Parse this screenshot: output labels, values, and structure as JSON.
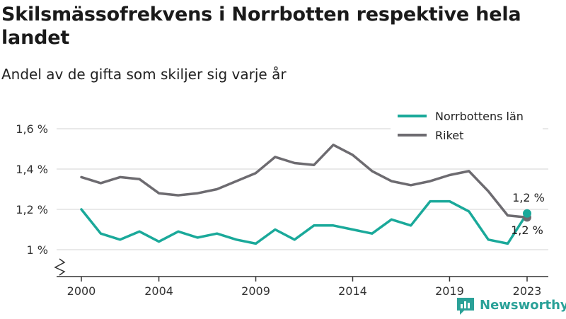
{
  "header": {
    "title": "Skilsmässofrekvens i Norrbotten respektive hela landet",
    "subtitle": "Andel av de gifta som skiljer sig varje år"
  },
  "brand": {
    "name": "Newsworthy",
    "color": "#2aa198"
  },
  "chart_data": {
    "type": "line",
    "title": "Skilsmässofrekvens i Norrbotten respektive hela landet",
    "subtitle": "Andel av de gifta som skiljer sig varje år",
    "xlabel": "",
    "ylabel": "",
    "x": [
      2000,
      2001,
      2002,
      2003,
      2004,
      2005,
      2006,
      2007,
      2008,
      2009,
      2010,
      2011,
      2012,
      2013,
      2014,
      2015,
      2016,
      2017,
      2018,
      2019,
      2020,
      2021,
      2022,
      2023
    ],
    "xticks": [
      2000,
      2004,
      2009,
      2014,
      2019,
      2023
    ],
    "xlim": [
      2000,
      2023
    ],
    "yticks": [
      1.0,
      1.2,
      1.4,
      1.6
    ],
    "ytick_labels": [
      "1 %",
      "1,2 %",
      "1,4 %",
      "1,6 %"
    ],
    "ylim": [
      1.0,
      1.6
    ],
    "axis_break": true,
    "grid": "horizontal",
    "legend_position": "top-right",
    "series": [
      {
        "name": "Norrbottens län",
        "color": "#1aa99a",
        "values": [
          1.2,
          1.08,
          1.05,
          1.09,
          1.04,
          1.09,
          1.06,
          1.08,
          1.05,
          1.03,
          1.1,
          1.05,
          1.12,
          1.12,
          1.1,
          1.08,
          1.15,
          1.12,
          1.24,
          1.24,
          1.19,
          1.05,
          1.03,
          1.18
        ],
        "end_label": "1,2 %"
      },
      {
        "name": "Riket",
        "color": "#6d6b70",
        "values": [
          1.36,
          1.33,
          1.36,
          1.35,
          1.28,
          1.27,
          1.28,
          1.3,
          1.34,
          1.38,
          1.46,
          1.43,
          1.42,
          1.52,
          1.47,
          1.39,
          1.34,
          1.32,
          1.34,
          1.37,
          1.39,
          1.29,
          1.17,
          1.16
        ],
        "end_label": "1,2 %"
      }
    ]
  }
}
